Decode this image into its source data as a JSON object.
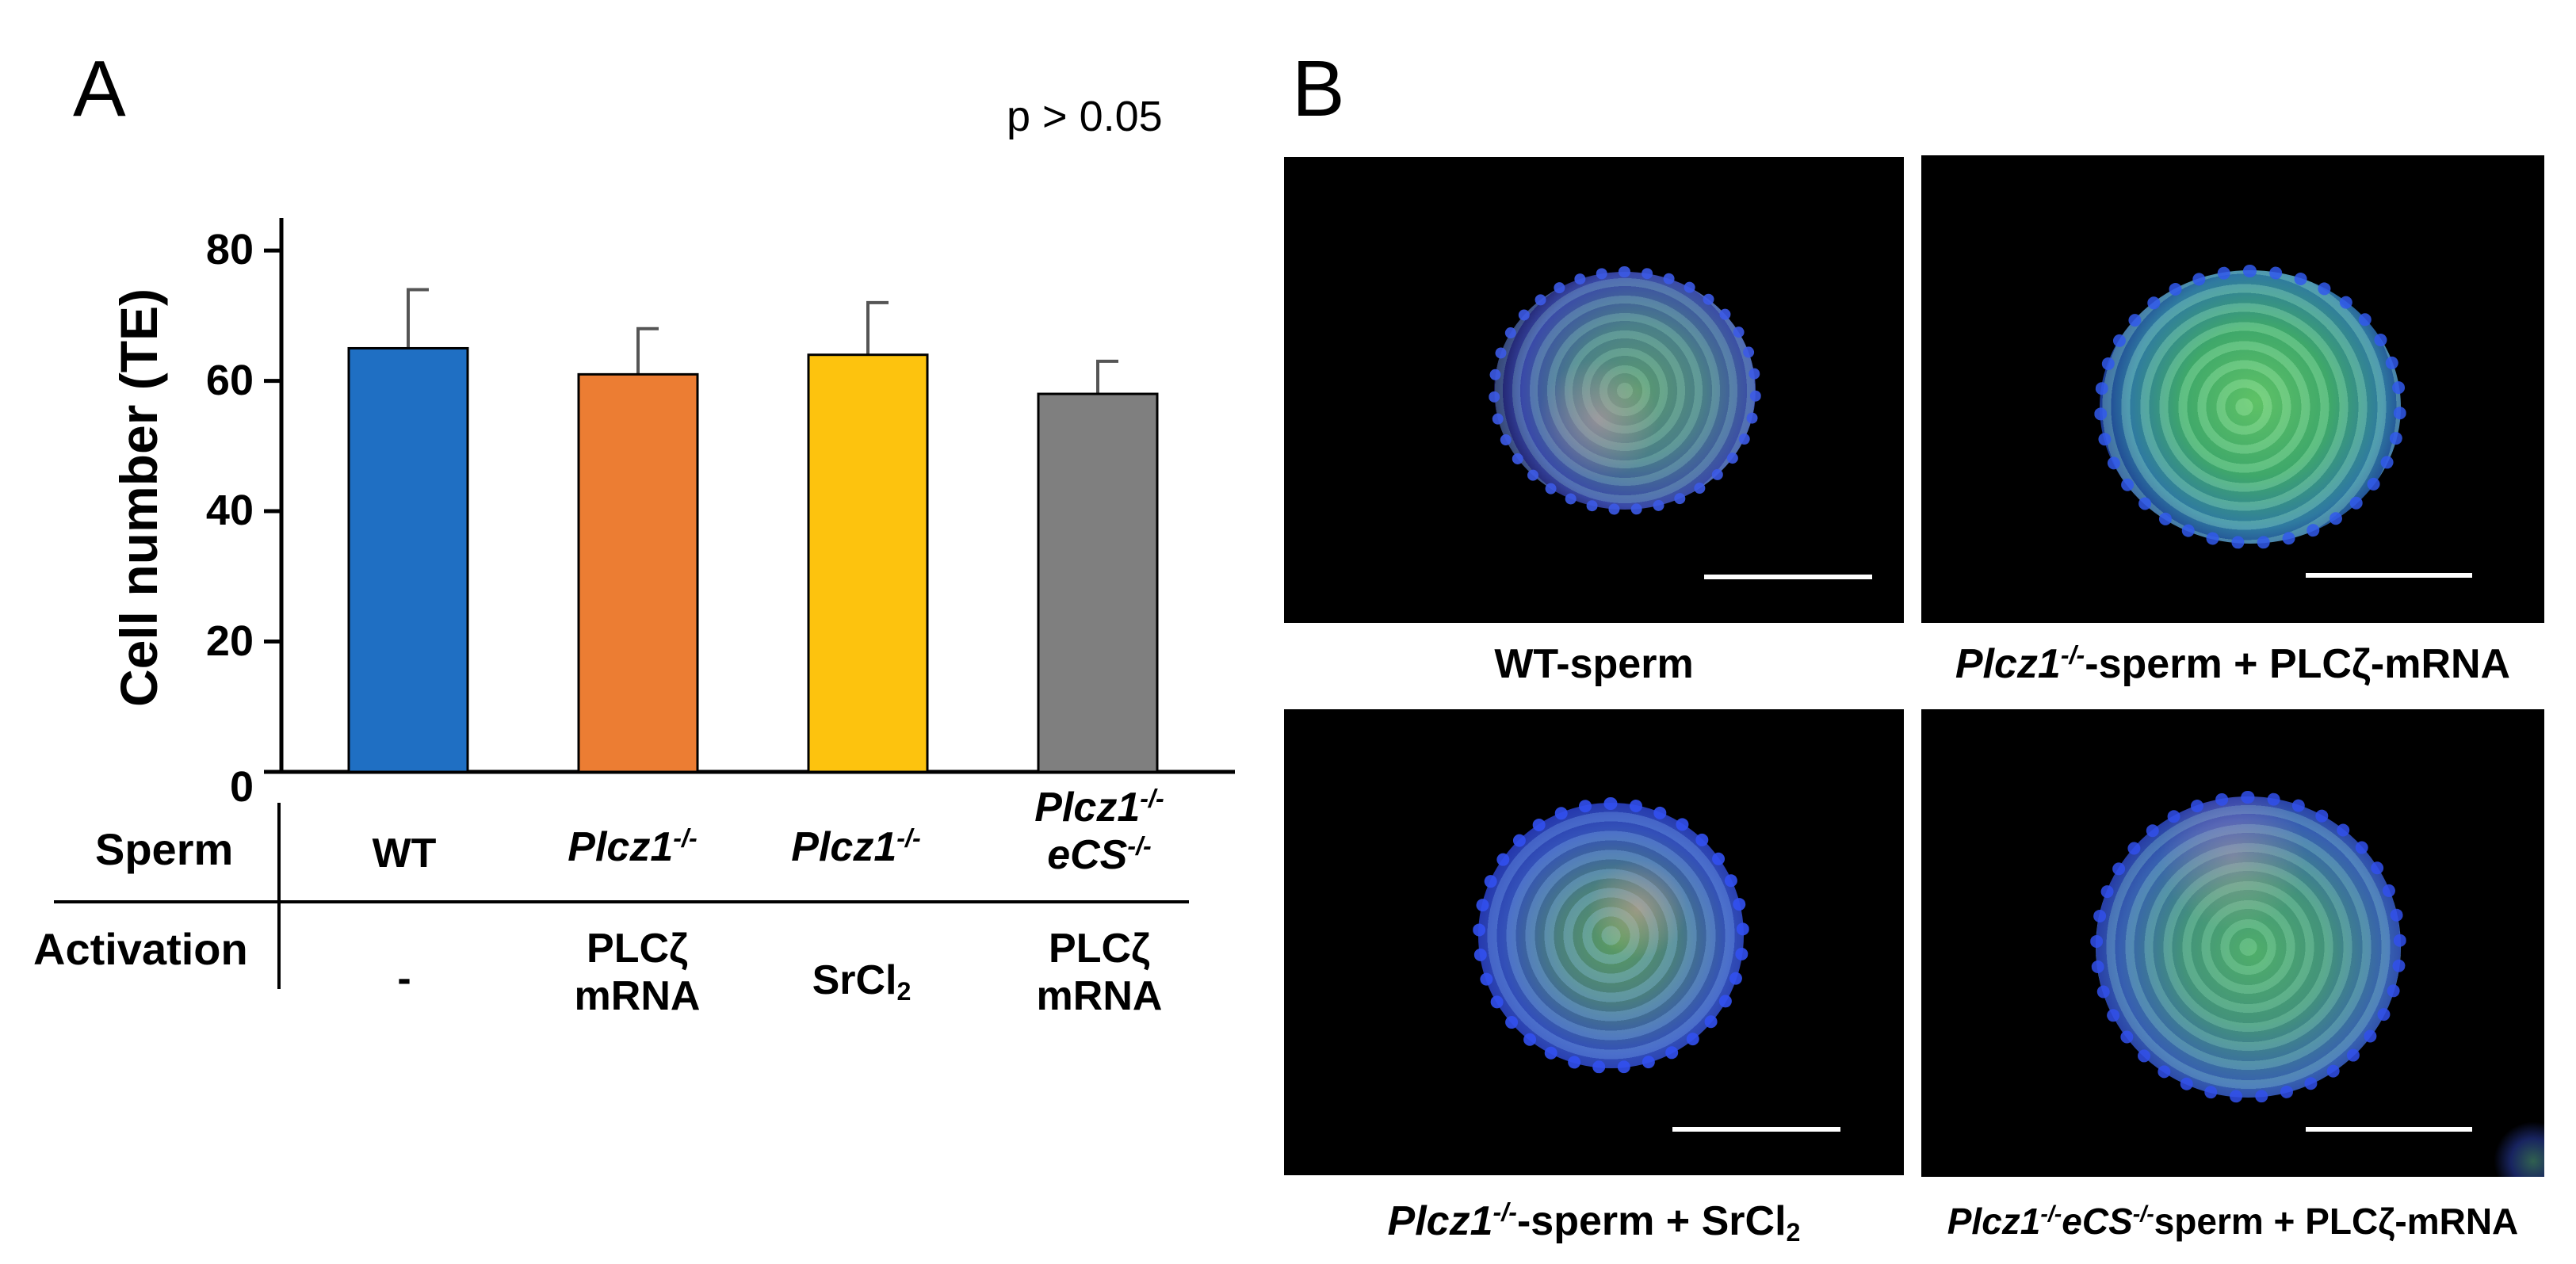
{
  "panel_a": {
    "letter": "A",
    "p_value": "p > 0.05"
  },
  "panel_b": {
    "letter": "B"
  },
  "chart_data": {
    "type": "bar",
    "ylabel": "Cell number (TE)",
    "ylim": [
      0,
      80
    ],
    "yticks": [
      0,
      20,
      40,
      60,
      80
    ],
    "values": [
      65,
      61,
      64,
      58
    ],
    "errors": [
      9,
      7,
      8,
      5
    ],
    "colors": [
      "#1f6fc3",
      "#ec7d33",
      "#fdc30e",
      "#7f7f7f"
    ]
  },
  "table": {
    "sperm_header": "Sperm",
    "activation_header": "Activation",
    "sperm": {
      "wt": "WT",
      "plcz1": "Plcz1",
      "plcz1_sup": "-/-",
      "ecs": "eCS",
      "ecs_sup": "-/-"
    },
    "activation": {
      "none": "-",
      "plc_line1": "PLCζ",
      "plc_line2": "mRNA",
      "sr_main": "SrCl",
      "sr_sub": "2"
    }
  },
  "captions": {
    "wt": "WT-sperm",
    "plcz1": "Plcz1",
    "sup": "-/-",
    "plus_plc": "-sperm + PLCζ-mRNA",
    "plus_sr": "-sperm + SrCl",
    "sr_sub": "2",
    "ecs": "eCS",
    "ecs_plc": "sperm + PLCζ-mRNA"
  }
}
